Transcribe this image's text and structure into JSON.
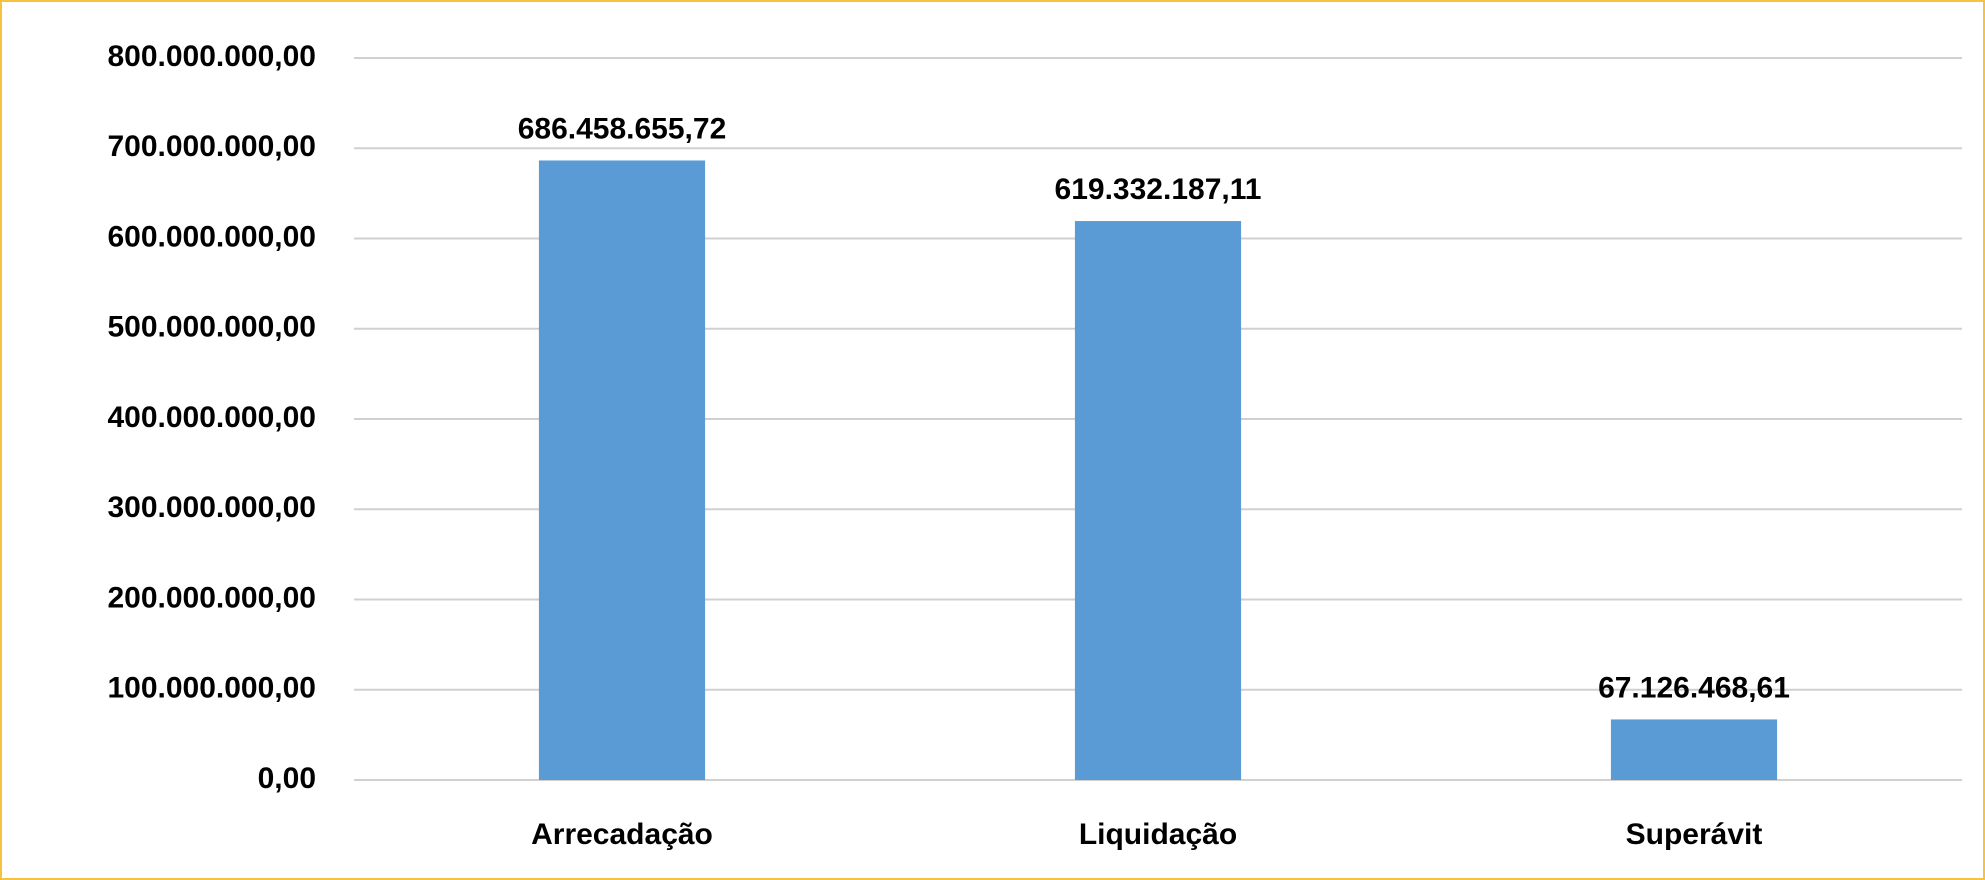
{
  "chart_data": {
    "type": "bar",
    "categories": [
      "Arrecadação",
      "Liquidação",
      "Superávit"
    ],
    "values": [
      686458655.72,
      619332187.11,
      67126468.61
    ],
    "value_labels": [
      "686.458.655,72",
      "619.332.187,11",
      "67.126.468,61"
    ],
    "color": "#5b9bd5",
    "ylim": [
      0,
      800000000
    ],
    "yticks": [
      {
        "value": 0,
        "label": "0,00"
      },
      {
        "value": 100000000,
        "label": "100.000.000,00"
      },
      {
        "value": 200000000,
        "label": "200.000.000,00"
      },
      {
        "value": 300000000,
        "label": "300.000.000,00"
      },
      {
        "value": 400000000,
        "label": "400.000.000,00"
      },
      {
        "value": 500000000,
        "label": "500.000.000,00"
      },
      {
        "value": 600000000,
        "label": "600.000.000,00"
      },
      {
        "value": 700000000,
        "label": "700.000.000,00"
      },
      {
        "value": 800000000,
        "label": "800.000.000,00"
      }
    ],
    "grid": true
  }
}
